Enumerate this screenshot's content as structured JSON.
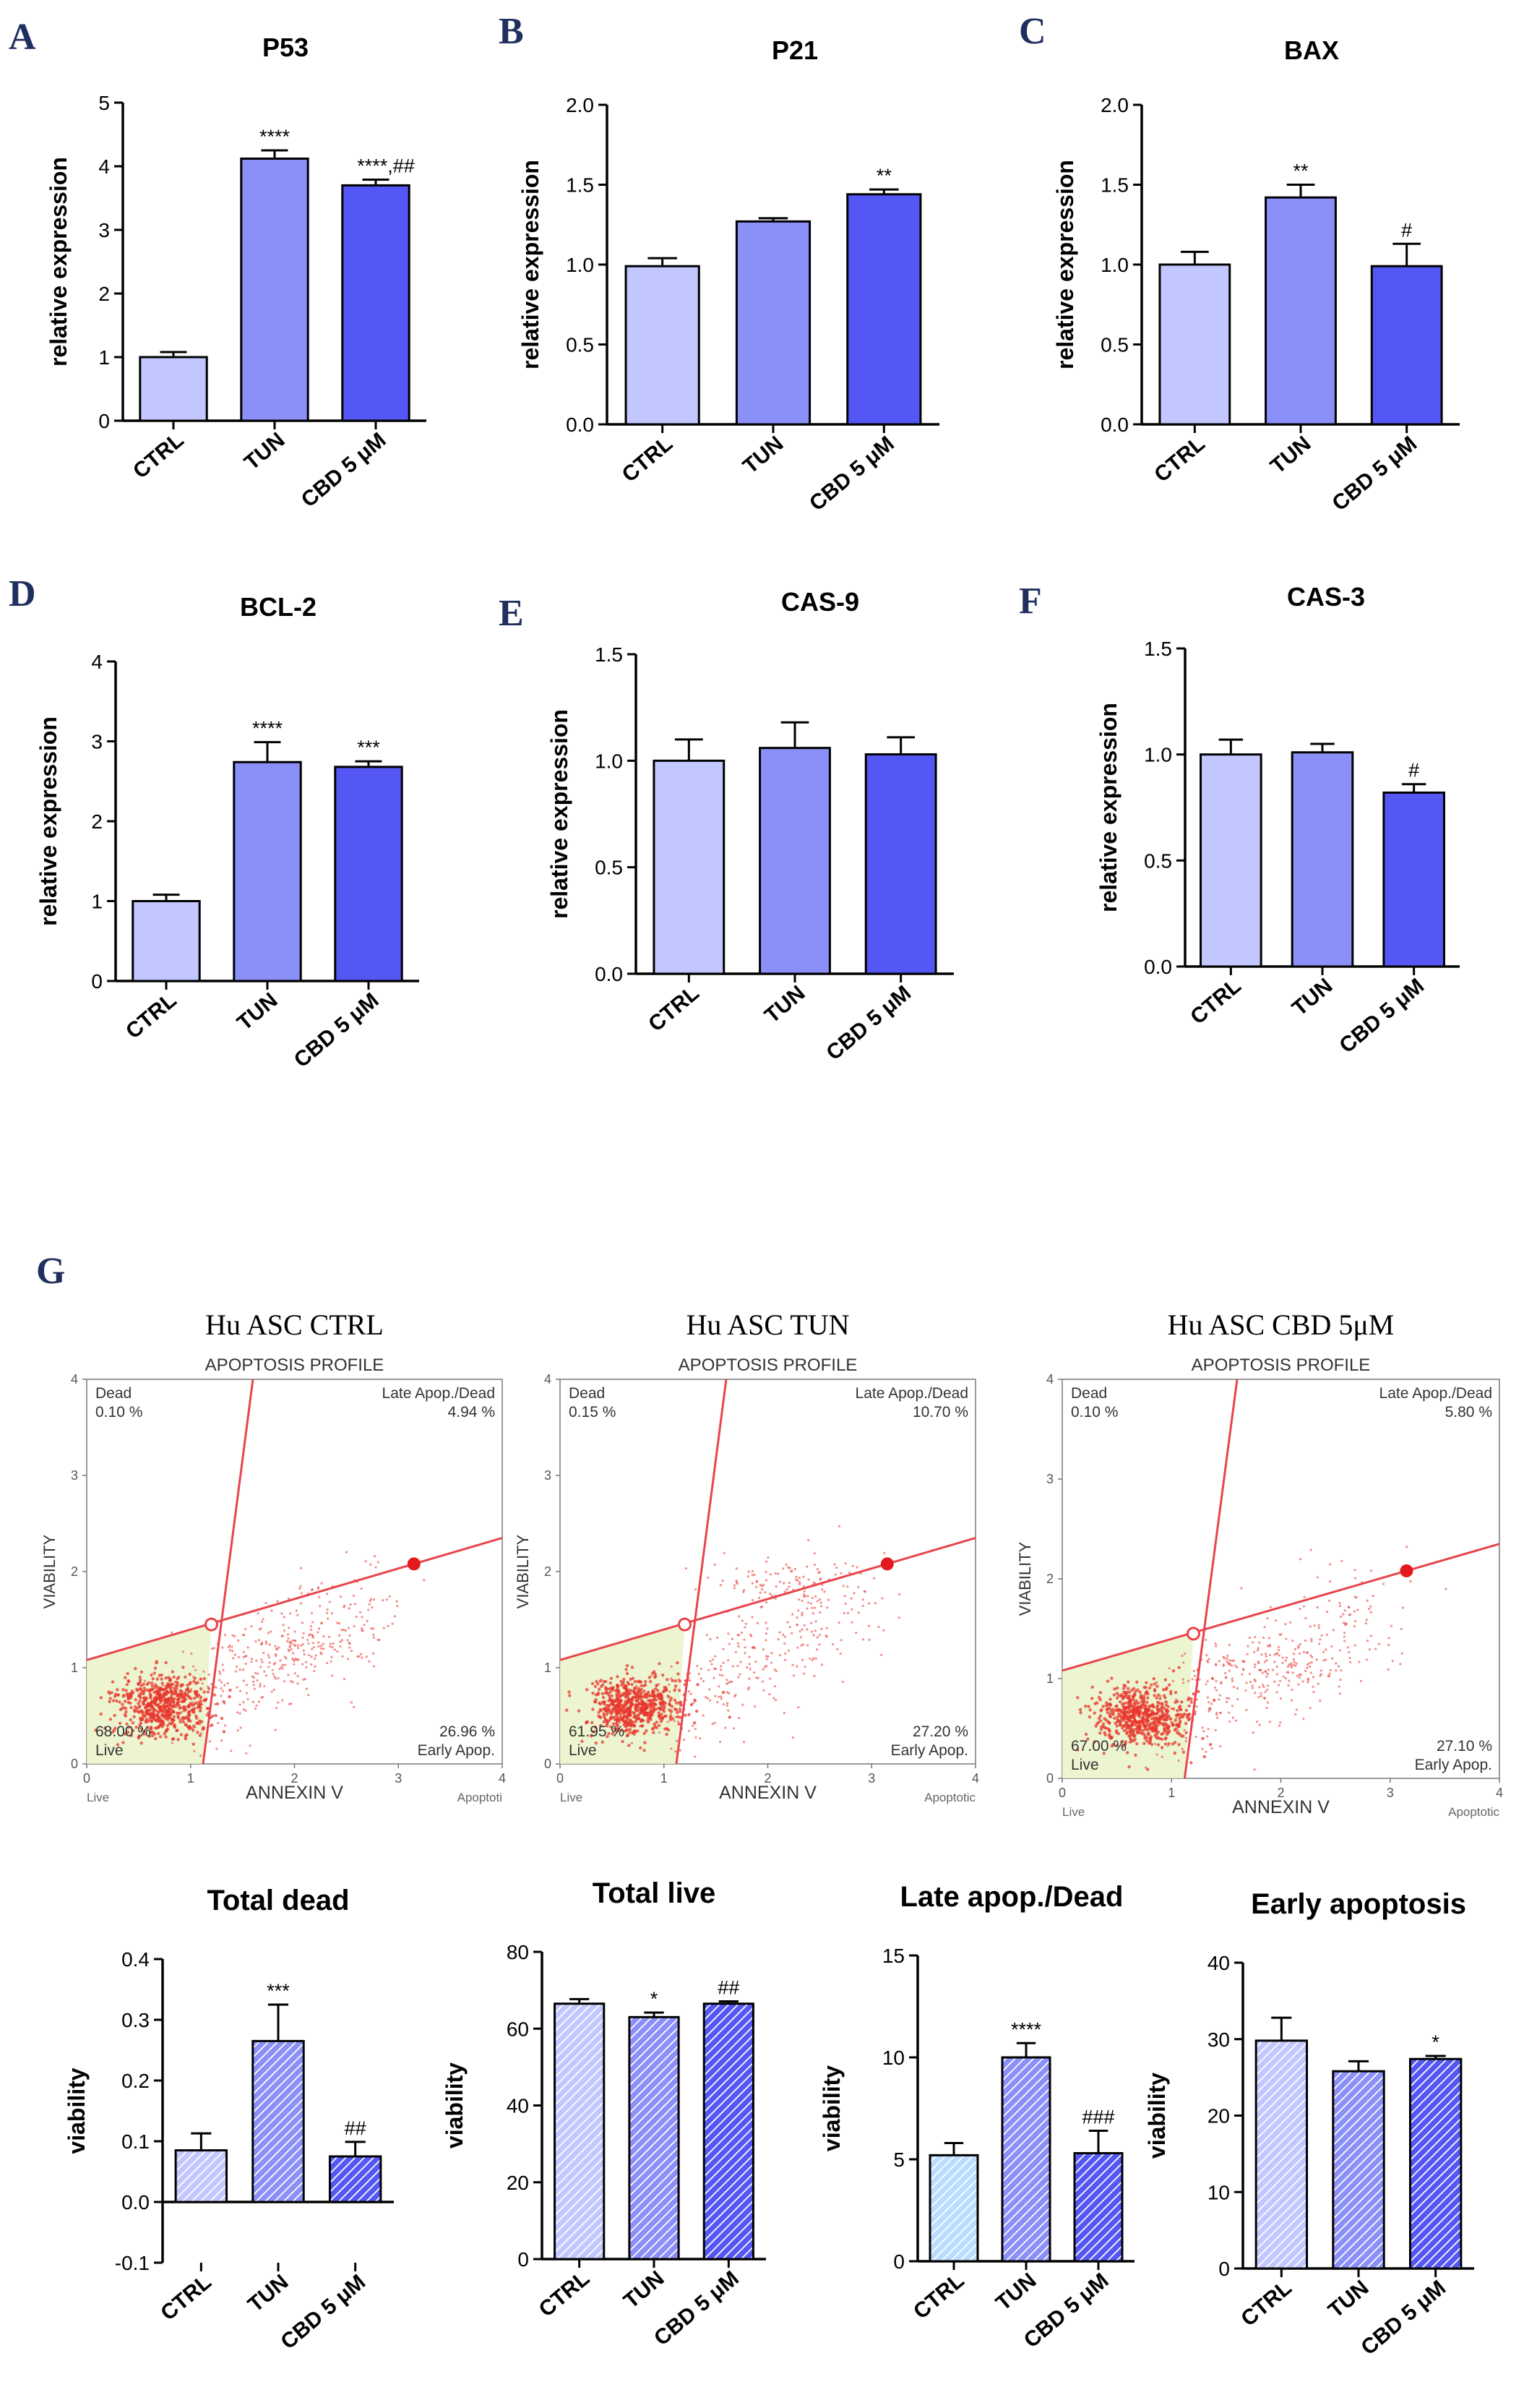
{
  "colors": {
    "ctrl": "#c3c7ff",
    "tun": "#8b8ff8",
    "cbd": "#5457f4",
    "late_ctrl": "#b9dcff",
    "axis": "#000000",
    "panel_letter": "#1f2f5e",
    "gate_line": "#e8454a",
    "live_region": "#e9f3c8",
    "dots": "#e8352e"
  },
  "panel_letters": [
    "A",
    "B",
    "C",
    "D",
    "E",
    "F",
    "G"
  ],
  "chart_data": [
    {
      "type": "bar",
      "panel": "A",
      "title": "P53",
      "ylabel": "relative expression",
      "categories": [
        "CTRL",
        "TUN",
        "CBD 5 μM"
      ],
      "values": [
        1.0,
        4.12,
        3.7
      ],
      "errors": [
        0.08,
        0.13,
        0.09
      ],
      "ylim": [
        0,
        5
      ],
      "yticks": [
        "0",
        "1",
        "2",
        "3",
        "4",
        "5"
      ],
      "annotations": [
        "",
        "****",
        "****,##"
      ]
    },
    {
      "type": "bar",
      "panel": "B",
      "title": "P21",
      "ylabel": "relative expression",
      "categories": [
        "CTRL",
        "TUN",
        "CBD 5 μM"
      ],
      "values": [
        0.99,
        1.27,
        1.44
      ],
      "errors": [
        0.05,
        0.02,
        0.03
      ],
      "ylim": [
        0,
        2.0
      ],
      "yticks": [
        "0.0",
        "0.5",
        "1.0",
        "1.5",
        "2.0"
      ],
      "annotations": [
        "",
        "",
        "**"
      ]
    },
    {
      "type": "bar",
      "panel": "C",
      "title": "BAX",
      "ylabel": "relative expression",
      "categories": [
        "CTRL",
        "TUN",
        "CBD 5 μM"
      ],
      "values": [
        1.0,
        1.42,
        0.99
      ],
      "errors": [
        0.08,
        0.08,
        0.14
      ],
      "ylim": [
        0,
        2.0
      ],
      "yticks": [
        "0.0",
        "0.5",
        "1.0",
        "1.5",
        "2.0"
      ],
      "annotations": [
        "",
        "**",
        "#"
      ]
    },
    {
      "type": "bar",
      "panel": "D",
      "title": "BCL-2",
      "ylabel": "relative expression",
      "categories": [
        "CTRL",
        "TUN",
        "CBD 5 μM"
      ],
      "values": [
        1.0,
        2.74,
        2.68
      ],
      "errors": [
        0.08,
        0.25,
        0.07
      ],
      "ylim": [
        0,
        4
      ],
      "yticks": [
        "0",
        "1",
        "2",
        "3",
        "4"
      ],
      "annotations": [
        "",
        "****",
        "***"
      ]
    },
    {
      "type": "bar",
      "panel": "E",
      "title": "CAS-9",
      "ylabel": "relative expression",
      "categories": [
        "CTRL",
        "TUN",
        "CBD 5 μM"
      ],
      "values": [
        1.0,
        1.06,
        1.03
      ],
      "errors": [
        0.1,
        0.12,
        0.08
      ],
      "ylim": [
        0,
        1.5
      ],
      "yticks": [
        "0.0",
        "0.5",
        "1.0",
        "1.5"
      ],
      "annotations": [
        "",
        "",
        ""
      ]
    },
    {
      "type": "bar",
      "panel": "F",
      "title": "CAS-3",
      "ylabel": "relative expression",
      "categories": [
        "CTRL",
        "TUN",
        "CBD 5 μM"
      ],
      "values": [
        1.0,
        1.01,
        0.82
      ],
      "errors": [
        0.07,
        0.04,
        0.04
      ],
      "ylim": [
        0,
        1.5
      ],
      "yticks": [
        "0.0",
        "0.5",
        "1.0",
        "1.5"
      ],
      "annotations": [
        "",
        "",
        "#"
      ]
    },
    {
      "type": "scatter",
      "panel": "G",
      "title": "Hu ASC CTRL",
      "subtitle": "APOPTOSIS PROFILE",
      "xlabel": "ANNEXIN V",
      "ylabel": "VIABILITY",
      "xlim": [
        0,
        4
      ],
      "ylim": [
        0,
        4
      ],
      "xticks": [
        "0",
        "1",
        "2",
        "3",
        "4"
      ],
      "yticks": [
        "0",
        "1",
        "2",
        "3",
        "4"
      ],
      "quadrants": {
        "dead": [
          "Dead",
          "0.10 %"
        ],
        "late": [
          "Late Apop./Dead",
          "4.94 %"
        ],
        "live": [
          "68.00 %",
          "Live"
        ],
        "early": [
          "26.96 %",
          "Early Apop."
        ]
      },
      "x_end_labels": [
        "Live",
        "Apoptoti"
      ],
      "cluster": {
        "live_center": [
          0.72,
          0.62
        ],
        "late_center": [
          1.9,
          1.2
        ]
      }
    },
    {
      "type": "scatter",
      "panel": "G",
      "title": "Hu ASC TUN",
      "subtitle": "APOPTOSIS PROFILE",
      "xlabel": "ANNEXIN V",
      "ylabel": "VIABILITY",
      "xlim": [
        0,
        4
      ],
      "ylim": [
        0,
        4
      ],
      "xticks": [
        "0",
        "1",
        "2",
        "3",
        "4"
      ],
      "yticks": [
        "0",
        "1",
        "2",
        "3",
        "4"
      ],
      "quadrants": {
        "dead": [
          "Dead",
          "0.15 %"
        ],
        "late": [
          "Late Apop./Dead",
          "10.70 %"
        ],
        "live": [
          "61.95 %",
          "Live"
        ],
        "early": [
          "27.20 %",
          "Early Apop."
        ]
      },
      "x_end_labels": [
        "Live",
        "Apoptotic"
      ],
      "cluster": {
        "live_center": [
          0.7,
          0.62
        ],
        "late_center": [
          2.1,
          1.9
        ]
      }
    },
    {
      "type": "scatter",
      "panel": "G",
      "title": "Hu ASC CBD 5μM",
      "subtitle": "APOPTOSIS PROFILE",
      "xlabel": "ANNEXIN V",
      "ylabel": "VIABILITY",
      "xlim": [
        0,
        4
      ],
      "ylim": [
        0,
        4
      ],
      "xticks": [
        "0",
        "1",
        "2",
        "3",
        "4"
      ],
      "yticks": [
        "0",
        "1",
        "2",
        "3",
        "4"
      ],
      "quadrants": {
        "dead": [
          "Dead",
          "0.10 %"
        ],
        "late": [
          "Late Apop./Dead",
          "5.80 %"
        ],
        "live": [
          "67.00 %",
          "Live"
        ],
        "early": [
          "27.10 %",
          "Early Apop."
        ]
      },
      "x_end_labels": [
        "Live",
        "Apoptotic"
      ],
      "cluster": {
        "live_center": [
          0.72,
          0.62
        ],
        "late_center": [
          1.9,
          1.15
        ]
      }
    },
    {
      "type": "bar",
      "panel": "G",
      "pattern": "hatched",
      "title": "Total dead",
      "ylabel": "viability",
      "categories": [
        "CTRL",
        "TUN",
        "CBD 5 μM"
      ],
      "values": [
        0.085,
        0.265,
        0.075
      ],
      "errors": [
        0.028,
        0.06,
        0.024
      ],
      "ylim": [
        -0.1,
        0.4
      ],
      "yticks": [
        "-0.1",
        "0.0",
        "0.1",
        "0.2",
        "0.3",
        "0.4"
      ],
      "annotations": [
        "",
        "***",
        "##"
      ]
    },
    {
      "type": "bar",
      "panel": "G",
      "pattern": "hatched",
      "title": "Total live",
      "ylabel": "viability",
      "categories": [
        "CTRL",
        "TUN",
        "CBD 5 μM"
      ],
      "values": [
        66.5,
        63.0,
        66.5
      ],
      "errors": [
        1.2,
        1.2,
        0.6
      ],
      "ylim": [
        0,
        80
      ],
      "yticks": [
        "0",
        "20",
        "40",
        "60",
        "80"
      ],
      "annotations": [
        "",
        "*",
        "##"
      ]
    },
    {
      "type": "bar",
      "panel": "G",
      "pattern": "hatched",
      "title": "Late apop./Dead",
      "ylabel": "viability",
      "categories": [
        "CTRL",
        "TUN",
        "CBD 5 μM"
      ],
      "values": [
        5.2,
        10.0,
        5.3
      ],
      "errors": [
        0.6,
        0.7,
        1.1
      ],
      "ylim": [
        0,
        15
      ],
      "yticks": [
        "0",
        "5",
        "10",
        "15"
      ],
      "annotations": [
        "",
        "****",
        "###"
      ]
    },
    {
      "type": "bar",
      "panel": "G",
      "pattern": "hatched",
      "title": "Early apoptosis",
      "ylabel": "viability",
      "categories": [
        "CTRL",
        "TUN",
        "CBD 5 μM"
      ],
      "values": [
        29.8,
        25.8,
        27.4
      ],
      "errors": [
        3.0,
        1.3,
        0.4
      ],
      "ylim": [
        0,
        40
      ],
      "yticks": [
        "0",
        "10",
        "20",
        "30",
        "40"
      ],
      "annotations": [
        "",
        "",
        "*"
      ]
    }
  ]
}
